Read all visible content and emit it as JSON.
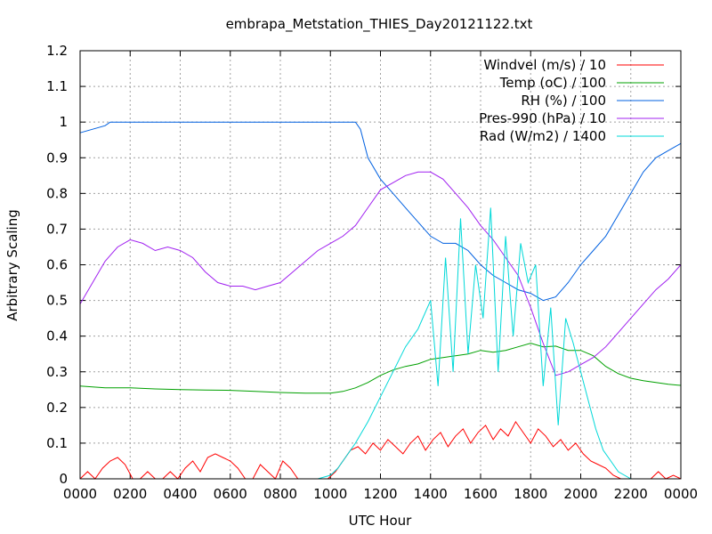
{
  "chart_data": {
    "type": "line",
    "title": "embrapa_Metstation_THIES_Day20121122.txt",
    "xlabel": "UTC Hour",
    "ylabel": "Arbitrary Scaling",
    "xlim": [
      0,
      24
    ],
    "ylim": [
      0,
      1.2
    ],
    "grid": true,
    "legend_position": "top-right",
    "x_ticks": [
      {
        "value": 0,
        "label": "0000"
      },
      {
        "value": 2,
        "label": "0200"
      },
      {
        "value": 4,
        "label": "0400"
      },
      {
        "value": 6,
        "label": "0600"
      },
      {
        "value": 8,
        "label": "0800"
      },
      {
        "value": 10,
        "label": "1000"
      },
      {
        "value": 12,
        "label": "1200"
      },
      {
        "value": 14,
        "label": "1400"
      },
      {
        "value": 16,
        "label": "1600"
      },
      {
        "value": 18,
        "label": "1800"
      },
      {
        "value": 20,
        "label": "2000"
      },
      {
        "value": 22,
        "label": "2200"
      },
      {
        "value": 24,
        "label": "0000"
      }
    ],
    "y_ticks": [
      {
        "value": 0,
        "label": "0"
      },
      {
        "value": 0.1,
        "label": "0.1"
      },
      {
        "value": 0.2,
        "label": "0.2"
      },
      {
        "value": 0.3,
        "label": "0.3"
      },
      {
        "value": 0.4,
        "label": "0.4"
      },
      {
        "value": 0.5,
        "label": "0.5"
      },
      {
        "value": 0.6,
        "label": "0.6"
      },
      {
        "value": 0.7,
        "label": "0.7"
      },
      {
        "value": 0.8,
        "label": "0.8"
      },
      {
        "value": 0.9,
        "label": "0.9"
      },
      {
        "value": 1,
        "label": "1"
      },
      {
        "value": 1.1,
        "label": "1.1"
      },
      {
        "value": 1.2,
        "label": "1.2"
      }
    ],
    "series": [
      {
        "name": "Windvel (m/s) / 10",
        "color": "#ff0000",
        "x": [
          0,
          0.3,
          0.6,
          0.9,
          1.2,
          1.5,
          1.8,
          2.1,
          2.4,
          2.7,
          3.0,
          3.3,
          3.6,
          3.9,
          4.2,
          4.5,
          4.8,
          5.1,
          5.4,
          5.7,
          6.0,
          6.3,
          6.6,
          6.9,
          7.2,
          7.5,
          7.8,
          8.1,
          8.4,
          8.7,
          9.0,
          9.3,
          9.6,
          9.9,
          10.2,
          10.5,
          10.8,
          11.1,
          11.4,
          11.7,
          12.0,
          12.3,
          12.6,
          12.9,
          13.2,
          13.5,
          13.8,
          14.1,
          14.4,
          14.7,
          15.0,
          15.3,
          15.6,
          15.9,
          16.2,
          16.5,
          16.8,
          17.1,
          17.4,
          17.7,
          18.0,
          18.3,
          18.6,
          18.9,
          19.2,
          19.5,
          19.8,
          20.1,
          20.4,
          20.7,
          21.0,
          21.3,
          21.6,
          21.9,
          22.2,
          22.5,
          22.8,
          23.1,
          23.4,
          23.7,
          24.0
        ],
        "y": [
          0.0,
          0.02,
          0.0,
          0.03,
          0.05,
          0.06,
          0.04,
          0.0,
          0.0,
          0.02,
          0.0,
          0.0,
          0.02,
          0.0,
          0.03,
          0.05,
          0.02,
          0.06,
          0.07,
          0.06,
          0.05,
          0.03,
          0.0,
          0.0,
          0.04,
          0.02,
          0.0,
          0.05,
          0.03,
          0.0,
          0.0,
          0.0,
          0.0,
          0.0,
          0.02,
          0.05,
          0.08,
          0.09,
          0.07,
          0.1,
          0.08,
          0.11,
          0.09,
          0.07,
          0.1,
          0.12,
          0.08,
          0.11,
          0.13,
          0.09,
          0.12,
          0.14,
          0.1,
          0.13,
          0.15,
          0.11,
          0.14,
          0.12,
          0.16,
          0.13,
          0.1,
          0.14,
          0.12,
          0.09,
          0.11,
          0.08,
          0.1,
          0.07,
          0.05,
          0.04,
          0.03,
          0.01,
          0.0,
          0.0,
          0.0,
          0.0,
          0.0,
          0.02,
          0.0,
          0.01,
          0.0
        ]
      },
      {
        "name": "Temp (oC) / 100",
        "color": "#00a000",
        "x": [
          0,
          1,
          2,
          3,
          4,
          5,
          6,
          7,
          8,
          9,
          10,
          10.5,
          11,
          11.5,
          12,
          12.5,
          13,
          13.5,
          14,
          14.5,
          15,
          15.5,
          16,
          16.5,
          17,
          17.5,
          18,
          18.5,
          19,
          19.5,
          20,
          20.5,
          21,
          21.5,
          22,
          22.5,
          23,
          23.5,
          24
        ],
        "y": [
          0.26,
          0.255,
          0.255,
          0.252,
          0.25,
          0.249,
          0.248,
          0.245,
          0.242,
          0.24,
          0.24,
          0.245,
          0.255,
          0.27,
          0.29,
          0.305,
          0.315,
          0.322,
          0.335,
          0.34,
          0.345,
          0.35,
          0.36,
          0.355,
          0.36,
          0.37,
          0.38,
          0.37,
          0.372,
          0.36,
          0.36,
          0.345,
          0.315,
          0.295,
          0.282,
          0.275,
          0.27,
          0.265,
          0.262
        ]
      },
      {
        "name": "RH (%) / 100",
        "color": "#0060e0",
        "x": [
          0,
          0.5,
          1.0,
          1.2,
          2,
          4,
          6,
          8,
          10,
          11,
          11.2,
          11.5,
          12.0,
          12.5,
          13.0,
          13.5,
          14.0,
          14.5,
          15.0,
          15.5,
          16.0,
          16.5,
          17.0,
          17.5,
          18.0,
          18.5,
          19.0,
          19.5,
          20.0,
          20.5,
          21.0,
          21.5,
          22.0,
          22.5,
          23.0,
          23.5,
          24.0
        ],
        "y": [
          0.97,
          0.98,
          0.99,
          1.0,
          1.0,
          1.0,
          1.0,
          1.0,
          1.0,
          1.0,
          0.98,
          0.9,
          0.84,
          0.8,
          0.76,
          0.72,
          0.68,
          0.66,
          0.66,
          0.64,
          0.6,
          0.57,
          0.55,
          0.53,
          0.52,
          0.5,
          0.51,
          0.55,
          0.6,
          0.64,
          0.68,
          0.74,
          0.8,
          0.86,
          0.9,
          0.92,
          0.94
        ]
      },
      {
        "name": "Pres-990 (hPa) / 10",
        "color": "#a020f0",
        "x": [
          0,
          0.5,
          1,
          1.5,
          2,
          2.5,
          3,
          3.5,
          4,
          4.5,
          5,
          5.5,
          6,
          6.5,
          7,
          7.5,
          8,
          8.5,
          9,
          9.5,
          10,
          10.5,
          11,
          11.5,
          12,
          12.5,
          13,
          13.5,
          14,
          14.5,
          15,
          15.5,
          16,
          16.5,
          17,
          17.5,
          18,
          18.5,
          19,
          19.5,
          20,
          20.5,
          21,
          21.5,
          22,
          22.5,
          23,
          23.5,
          24
        ],
        "y": [
          0.49,
          0.55,
          0.61,
          0.65,
          0.67,
          0.66,
          0.64,
          0.65,
          0.64,
          0.62,
          0.58,
          0.55,
          0.54,
          0.54,
          0.53,
          0.54,
          0.55,
          0.58,
          0.61,
          0.64,
          0.66,
          0.68,
          0.71,
          0.76,
          0.81,
          0.83,
          0.85,
          0.86,
          0.86,
          0.84,
          0.8,
          0.76,
          0.71,
          0.67,
          0.62,
          0.57,
          0.48,
          0.38,
          0.29,
          0.3,
          0.32,
          0.34,
          0.37,
          0.41,
          0.45,
          0.49,
          0.53,
          0.56,
          0.6
        ]
      },
      {
        "name": "Rad (W/m2) / 1400",
        "color": "#00d8d8",
        "x": [
          0,
          2,
          4,
          6,
          8,
          9.5,
          10,
          10.3,
          10.6,
          11,
          11.5,
          12,
          12.5,
          13,
          13.5,
          14,
          14.3,
          14.6,
          14.9,
          15.2,
          15.5,
          15.8,
          16.1,
          16.4,
          16.7,
          17.0,
          17.3,
          17.6,
          17.9,
          18.2,
          18.5,
          18.8,
          19.1,
          19.4,
          19.7,
          20.0,
          20.3,
          20.6,
          20.9,
          21.2,
          21.5,
          22,
          24
        ],
        "y": [
          0,
          0,
          0,
          0,
          0,
          0,
          0.01,
          0.03,
          0.06,
          0.1,
          0.16,
          0.23,
          0.3,
          0.37,
          0.42,
          0.5,
          0.26,
          0.62,
          0.3,
          0.73,
          0.35,
          0.6,
          0.45,
          0.76,
          0.3,
          0.68,
          0.4,
          0.66,
          0.55,
          0.6,
          0.26,
          0.48,
          0.15,
          0.45,
          0.38,
          0.3,
          0.22,
          0.14,
          0.08,
          0.05,
          0.02,
          0,
          0
        ]
      }
    ]
  }
}
